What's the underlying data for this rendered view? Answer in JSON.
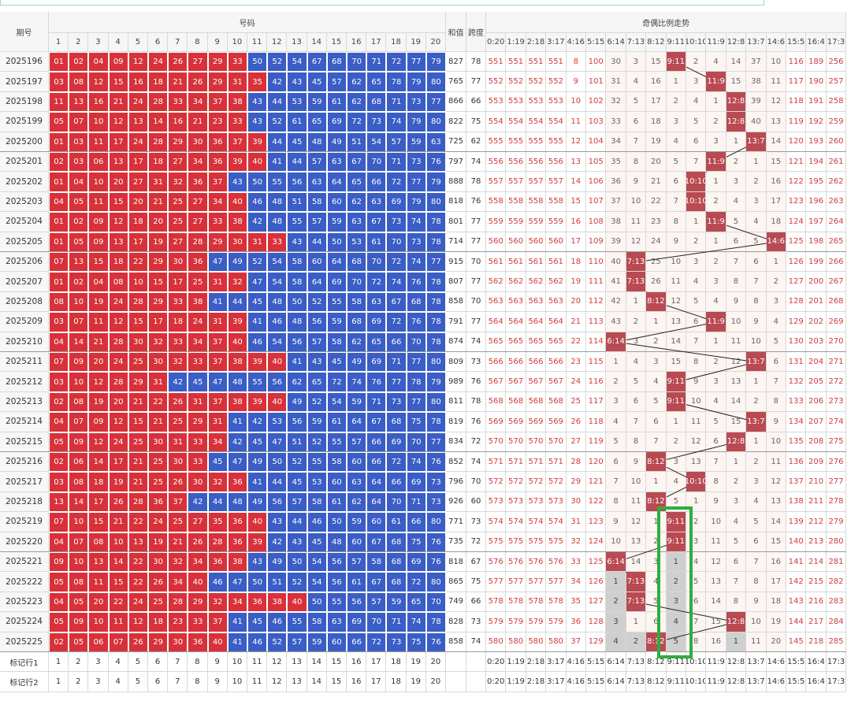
{
  "header": {
    "issue": "期号",
    "numbers": "号码",
    "sum": "和值",
    "span": "跨度",
    "trend": "奇偶比例走势"
  },
  "number_columns": [
    1,
    2,
    3,
    4,
    5,
    6,
    7,
    8,
    9,
    10,
    11,
    12,
    13,
    14,
    15,
    16,
    17,
    18,
    19,
    20
  ],
  "ratio_columns": [
    "0:20",
    "1:19",
    "2:18",
    "3:17",
    "4:16",
    "5:15",
    "6:14",
    "7:13",
    "8:12",
    "9:11",
    "10:10",
    "11:9",
    "12:8",
    "13:7",
    "14:6",
    "15:5",
    "16:4",
    "17:3"
  ],
  "rows": [
    {
      "issue": "2025196",
      "numbers": [
        "01",
        "02",
        "04",
        "09",
        "12",
        "24",
        "26",
        "27",
        "29",
        "33",
        "50",
        "52",
        "54",
        "67",
        "68",
        "70",
        "71",
        "72",
        "77",
        "79"
      ],
      "sum": 827,
      "span": 78,
      "trend": [
        551,
        551,
        551,
        551,
        8,
        100,
        30,
        3,
        15,
        "9:11",
        2,
        4,
        14,
        37,
        10,
        116,
        189,
        256
      ]
    },
    {
      "issue": "2025197",
      "numbers": [
        "03",
        "08",
        "12",
        "15",
        "16",
        "18",
        "21",
        "26",
        "29",
        "31",
        "35",
        "42",
        "43",
        "45",
        "57",
        "62",
        "65",
        "78",
        "79",
        "80"
      ],
      "sum": 765,
      "span": 77,
      "trend": [
        552,
        552,
        552,
        552,
        9,
        101,
        31,
        4,
        16,
        1,
        3,
        "11:9",
        15,
        38,
        11,
        117,
        190,
        257
      ]
    },
    {
      "issue": "2025198",
      "numbers": [
        "11",
        "13",
        "16",
        "21",
        "24",
        "28",
        "33",
        "34",
        "37",
        "38",
        "43",
        "44",
        "53",
        "59",
        "61",
        "62",
        "68",
        "71",
        "73",
        "77"
      ],
      "sum": 866,
      "span": 66,
      "trend": [
        553,
        553,
        553,
        553,
        10,
        102,
        32,
        5,
        17,
        2,
        4,
        1,
        "12:8",
        39,
        12,
        118,
        191,
        258
      ]
    },
    {
      "issue": "2025199",
      "numbers": [
        "05",
        "07",
        "10",
        "12",
        "13",
        "14",
        "16",
        "21",
        "23",
        "33",
        "43",
        "52",
        "61",
        "65",
        "69",
        "72",
        "73",
        "74",
        "79",
        "80"
      ],
      "sum": 822,
      "span": 75,
      "trend": [
        554,
        554,
        554,
        554,
        11,
        103,
        33,
        6,
        18,
        3,
        5,
        2,
        "12:8",
        40,
        13,
        119,
        192,
        259
      ]
    },
    {
      "issue": "2025200",
      "numbers": [
        "01",
        "03",
        "11",
        "17",
        "24",
        "28",
        "29",
        "30",
        "36",
        "37",
        "39",
        "44",
        "45",
        "48",
        "49",
        "51",
        "54",
        "57",
        "59",
        "63"
      ],
      "sum": 725,
      "span": 62,
      "trend": [
        555,
        555,
        555,
        555,
        12,
        104,
        34,
        7,
        19,
        4,
        6,
        3,
        1,
        "13:7",
        14,
        120,
        193,
        260
      ]
    },
    {
      "issue": "2025201",
      "numbers": [
        "02",
        "03",
        "06",
        "13",
        "17",
        "18",
        "27",
        "34",
        "36",
        "39",
        "40",
        "41",
        "44",
        "57",
        "63",
        "67",
        "70",
        "71",
        "73",
        "76"
      ],
      "sum": 797,
      "span": 74,
      "trend": [
        556,
        556,
        556,
        556,
        13,
        105,
        35,
        8,
        20,
        5,
        7,
        "11:9",
        2,
        1,
        15,
        121,
        194,
        261
      ]
    },
    {
      "issue": "2025202",
      "numbers": [
        "01",
        "04",
        "10",
        "20",
        "27",
        "31",
        "32",
        "36",
        "37",
        "43",
        "50",
        "55",
        "56",
        "63",
        "64",
        "65",
        "66",
        "72",
        "77",
        "79"
      ],
      "sum": 888,
      "span": 78,
      "trend": [
        557,
        557,
        557,
        557,
        14,
        106,
        36,
        9,
        21,
        6,
        "10:10",
        1,
        3,
        2,
        16,
        122,
        195,
        262
      ]
    },
    {
      "issue": "2025203",
      "numbers": [
        "04",
        "05",
        "11",
        "15",
        "20",
        "21",
        "25",
        "27",
        "34",
        "40",
        "46",
        "48",
        "51",
        "58",
        "60",
        "62",
        "63",
        "69",
        "79",
        "80"
      ],
      "sum": 818,
      "span": 76,
      "trend": [
        558,
        558,
        558,
        558,
        15,
        107,
        37,
        10,
        22,
        7,
        "10:10",
        2,
        4,
        3,
        17,
        123,
        196,
        263
      ]
    },
    {
      "issue": "2025204",
      "numbers": [
        "01",
        "02",
        "09",
        "12",
        "18",
        "20",
        "25",
        "27",
        "33",
        "38",
        "42",
        "48",
        "55",
        "57",
        "59",
        "63",
        "67",
        "73",
        "74",
        "78"
      ],
      "sum": 801,
      "span": 77,
      "trend": [
        559,
        559,
        559,
        559,
        16,
        108,
        38,
        11,
        23,
        8,
        1,
        "11:9",
        5,
        4,
        18,
        124,
        197,
        264
      ]
    },
    {
      "issue": "2025205",
      "numbers": [
        "01",
        "05",
        "09",
        "13",
        "17",
        "19",
        "27",
        "28",
        "29",
        "30",
        "31",
        "33",
        "43",
        "44",
        "50",
        "53",
        "61",
        "70",
        "73",
        "78"
      ],
      "sum": 714,
      "span": 77,
      "trend": [
        560,
        560,
        560,
        560,
        17,
        109,
        39,
        12,
        24,
        9,
        2,
        1,
        6,
        5,
        "14:6",
        125,
        198,
        265
      ]
    },
    {
      "issue": "2025206",
      "numbers": [
        "07",
        "13",
        "15",
        "18",
        "22",
        "29",
        "30",
        "36",
        "47",
        "49",
        "52",
        "54",
        "58",
        "60",
        "64",
        "68",
        "70",
        "72",
        "74",
        "77"
      ],
      "sum": 915,
      "span": 70,
      "trend": [
        561,
        561,
        561,
        561,
        18,
        110,
        40,
        "7:13",
        25,
        10,
        3,
        2,
        7,
        6,
        1,
        126,
        199,
        266
      ]
    },
    {
      "issue": "2025207",
      "numbers": [
        "01",
        "02",
        "04",
        "08",
        "10",
        "15",
        "17",
        "25",
        "31",
        "32",
        "47",
        "54",
        "58",
        "64",
        "69",
        "70",
        "72",
        "74",
        "76",
        "78"
      ],
      "sum": 807,
      "span": 77,
      "trend": [
        562,
        562,
        562,
        562,
        19,
        111,
        41,
        "7:13",
        26,
        11,
        4,
        3,
        8,
        7,
        2,
        127,
        200,
        267
      ]
    },
    {
      "issue": "2025208",
      "numbers": [
        "08",
        "10",
        "19",
        "24",
        "28",
        "29",
        "33",
        "38",
        "41",
        "44",
        "45",
        "48",
        "50",
        "52",
        "55",
        "58",
        "63",
        "67",
        "68",
        "78"
      ],
      "sum": 858,
      "span": 70,
      "trend": [
        563,
        563,
        563,
        563,
        20,
        112,
        42,
        1,
        "8:12",
        12,
        5,
        4,
        9,
        8,
        3,
        128,
        201,
        268
      ]
    },
    {
      "issue": "2025209",
      "numbers": [
        "03",
        "07",
        "11",
        "12",
        "15",
        "17",
        "18",
        "24",
        "31",
        "39",
        "41",
        "46",
        "48",
        "56",
        "59",
        "68",
        "69",
        "72",
        "76",
        "78"
      ],
      "sum": 791,
      "span": 77,
      "trend": [
        564,
        564,
        564,
        564,
        21,
        113,
        43,
        2,
        1,
        13,
        6,
        "11:9",
        10,
        9,
        4,
        129,
        202,
        269
      ]
    },
    {
      "issue": "2025210",
      "numbers": [
        "04",
        "14",
        "21",
        "28",
        "30",
        "32",
        "33",
        "34",
        "37",
        "40",
        "46",
        "54",
        "56",
        "57",
        "58",
        "62",
        "65",
        "66",
        "70",
        "78"
      ],
      "sum": 874,
      "span": 74,
      "trend": [
        565,
        565,
        565,
        565,
        22,
        114,
        "6:14",
        3,
        2,
        14,
        7,
        1,
        11,
        10,
        5,
        130,
        203,
        270
      ]
    },
    {
      "issue": "2025211",
      "numbers": [
        "07",
        "09",
        "20",
        "24",
        "25",
        "30",
        "32",
        "33",
        "37",
        "38",
        "39",
        "40",
        "41",
        "43",
        "45",
        "49",
        "69",
        "71",
        "77",
        "80"
      ],
      "sum": 809,
      "span": 73,
      "trend": [
        566,
        566,
        566,
        566,
        23,
        115,
        1,
        4,
        3,
        15,
        8,
        2,
        12,
        "13:7",
        6,
        131,
        204,
        271
      ]
    },
    {
      "issue": "2025212",
      "numbers": [
        "03",
        "10",
        "12",
        "28",
        "29",
        "31",
        "42",
        "45",
        "47",
        "48",
        "55",
        "56",
        "62",
        "65",
        "72",
        "74",
        "76",
        "77",
        "78",
        "79"
      ],
      "sum": 989,
      "span": 76,
      "trend": [
        567,
        567,
        567,
        567,
        24,
        116,
        2,
        5,
        4,
        "9:11",
        9,
        3,
        13,
        1,
        7,
        132,
        205,
        272
      ]
    },
    {
      "issue": "2025213",
      "numbers": [
        "02",
        "08",
        "19",
        "20",
        "21",
        "22",
        "26",
        "31",
        "37",
        "38",
        "39",
        "40",
        "49",
        "52",
        "54",
        "59",
        "71",
        "73",
        "77",
        "80"
      ],
      "sum": 811,
      "span": 78,
      "trend": [
        568,
        568,
        568,
        568,
        25,
        117,
        3,
        6,
        5,
        "9:11",
        10,
        4,
        14,
        2,
        8,
        133,
        206,
        273
      ]
    },
    {
      "issue": "2025214",
      "numbers": [
        "04",
        "07",
        "09",
        "12",
        "15",
        "21",
        "25",
        "29",
        "31",
        "41",
        "42",
        "53",
        "56",
        "59",
        "61",
        "64",
        "67",
        "68",
        "75",
        "78"
      ],
      "sum": 819,
      "span": 76,
      "trend": [
        569,
        569,
        569,
        569,
        26,
        118,
        4,
        7,
        6,
        1,
        11,
        5,
        15,
        "13:7",
        9,
        134,
        207,
        274
      ]
    },
    {
      "issue": "2025215",
      "numbers": [
        "05",
        "09",
        "12",
        "24",
        "25",
        "30",
        "31",
        "33",
        "34",
        "42",
        "45",
        "47",
        "51",
        "52",
        "55",
        "57",
        "66",
        "69",
        "70",
        "77"
      ],
      "sum": 834,
      "span": 72,
      "trend": [
        570,
        570,
        570,
        570,
        27,
        119,
        5,
        8,
        7,
        2,
        12,
        6,
        "12:8",
        1,
        10,
        135,
        208,
        275
      ]
    },
    {
      "issue": "2025216",
      "numbers": [
        "02",
        "06",
        "14",
        "17",
        "21",
        "25",
        "30",
        "33",
        "45",
        "47",
        "49",
        "50",
        "52",
        "55",
        "58",
        "60",
        "66",
        "72",
        "74",
        "76"
      ],
      "sum": 852,
      "span": 74,
      "trend": [
        571,
        571,
        571,
        571,
        28,
        120,
        6,
        9,
        "8:12",
        3,
        13,
        7,
        1,
        2,
        11,
        136,
        209,
        276
      ]
    },
    {
      "issue": "2025217",
      "numbers": [
        "03",
        "08",
        "18",
        "19",
        "21",
        "25",
        "26",
        "30",
        "32",
        "36",
        "41",
        "44",
        "45",
        "53",
        "60",
        "63",
        "64",
        "66",
        "69",
        "73"
      ],
      "sum": 796,
      "span": 70,
      "trend": [
        572,
        572,
        572,
        572,
        29,
        121,
        7,
        10,
        1,
        4,
        "10:10",
        8,
        2,
        3,
        12,
        137,
        210,
        277
      ]
    },
    {
      "issue": "2025218",
      "numbers": [
        "13",
        "14",
        "17",
        "26",
        "28",
        "36",
        "37",
        "42",
        "44",
        "48",
        "49",
        "56",
        "57",
        "58",
        "61",
        "62",
        "64",
        "70",
        "71",
        "73"
      ],
      "sum": 926,
      "span": 60,
      "trend": [
        573,
        573,
        573,
        573,
        30,
        122,
        8,
        11,
        "8:12",
        5,
        1,
        9,
        3,
        4,
        13,
        138,
        211,
        278
      ]
    },
    {
      "issue": "2025219",
      "numbers": [
        "07",
        "10",
        "15",
        "21",
        "22",
        "24",
        "25",
        "27",
        "35",
        "36",
        "40",
        "43",
        "44",
        "46",
        "50",
        "59",
        "60",
        "61",
        "66",
        "80"
      ],
      "sum": 771,
      "span": 73,
      "trend": [
        574,
        574,
        574,
        574,
        31,
        123,
        9,
        12,
        1,
        "9:11",
        2,
        10,
        4,
        5,
        14,
        139,
        212,
        279
      ]
    },
    {
      "issue": "2025220",
      "numbers": [
        "04",
        "07",
        "08",
        "10",
        "13",
        "19",
        "21",
        "26",
        "28",
        "36",
        "39",
        "42",
        "43",
        "45",
        "48",
        "60",
        "67",
        "68",
        "75",
        "76"
      ],
      "sum": 735,
      "span": 72,
      "trend": [
        575,
        575,
        575,
        575,
        32,
        124,
        10,
        13,
        2,
        "9:11",
        3,
        11,
        5,
        6,
        15,
        140,
        213,
        280
      ]
    },
    {
      "issue": "2025221",
      "numbers": [
        "09",
        "10",
        "13",
        "14",
        "22",
        "30",
        "32",
        "34",
        "36",
        "38",
        "43",
        "49",
        "50",
        "54",
        "56",
        "57",
        "58",
        "68",
        "69",
        "76"
      ],
      "sum": 818,
      "span": 67,
      "trend": [
        576,
        576,
        576,
        576,
        33,
        125,
        "6:14",
        14,
        3,
        1,
        4,
        12,
        6,
        7,
        16,
        141,
        214,
        281
      ]
    },
    {
      "issue": "2025222",
      "numbers": [
        "05",
        "08",
        "11",
        "15",
        "22",
        "26",
        "34",
        "40",
        "46",
        "47",
        "50",
        "51",
        "52",
        "54",
        "56",
        "61",
        "67",
        "68",
        "72",
        "80"
      ],
      "sum": 865,
      "span": 75,
      "trend": [
        577,
        577,
        577,
        577,
        34,
        126,
        1,
        "7:13",
        4,
        2,
        5,
        13,
        7,
        8,
        17,
        142,
        215,
        282
      ]
    },
    {
      "issue": "2025223",
      "numbers": [
        "04",
        "05",
        "20",
        "22",
        "24",
        "25",
        "28",
        "29",
        "32",
        "34",
        "36",
        "38",
        "40",
        "50",
        "55",
        "56",
        "57",
        "59",
        "65",
        "70"
      ],
      "sum": 749,
      "span": 66,
      "trend": [
        578,
        578,
        578,
        578,
        35,
        127,
        2,
        "7:13",
        5,
        3,
        6,
        14,
        8,
        9,
        18,
        143,
        216,
        283
      ]
    },
    {
      "issue": "2025224",
      "numbers": [
        "05",
        "09",
        "10",
        "11",
        "12",
        "18",
        "23",
        "33",
        "37",
        "41",
        "45",
        "46",
        "55",
        "58",
        "63",
        "69",
        "70",
        "71",
        "74",
        "78"
      ],
      "sum": 828,
      "span": 73,
      "trend": [
        579,
        579,
        579,
        579,
        36,
        128,
        3,
        1,
        6,
        4,
        7,
        15,
        "12:8",
        10,
        19,
        144,
        217,
        284
      ]
    },
    {
      "issue": "2025225",
      "numbers": [
        "02",
        "05",
        "06",
        "07",
        "26",
        "29",
        "30",
        "36",
        "40",
        "41",
        "46",
        "52",
        "57",
        "59",
        "60",
        "66",
        "72",
        "73",
        "75",
        "76"
      ],
      "sum": 858,
      "span": 74,
      "trend": [
        580,
        580,
        580,
        580,
        37,
        129,
        4,
        2,
        "8:12",
        5,
        8,
        16,
        1,
        11,
        20,
        145,
        218,
        285
      ]
    }
  ],
  "footer_rows": [
    {
      "label": "标记行1"
    },
    {
      "label": "标记行2"
    }
  ]
}
